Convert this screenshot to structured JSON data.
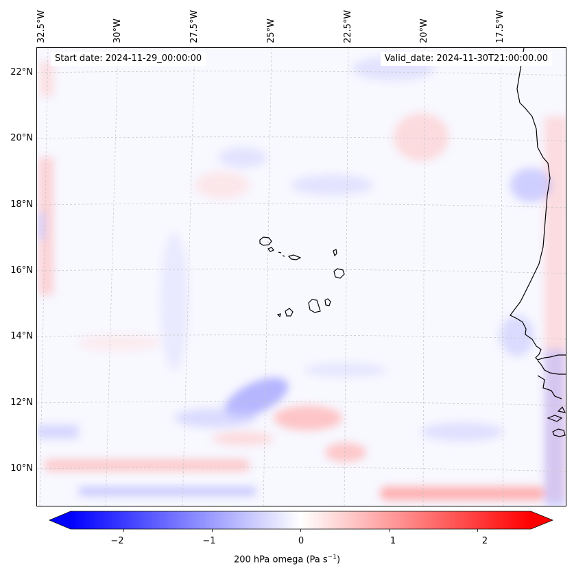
{
  "header": {
    "start_date": "Start date: 2024-11-29_00:00:00",
    "valid_date": "Valid_date: 2024-11-30T21:00:00.00"
  },
  "axes": {
    "longitude_labels": [
      "32.5°W",
      "30°W",
      "27.5°W",
      "25°W",
      "22.5°W",
      "20°W",
      "17.5°W"
    ],
    "latitude_labels": [
      "22°N",
      "20°N",
      "18°N",
      "16°N",
      "14°N",
      "12°N",
      "10°N"
    ]
  },
  "colorbar": {
    "ticks": [
      "−2",
      "−1",
      "0",
      "1",
      "2"
    ],
    "label": "200 hPa omega (Pa s",
    "label_exponent": "−1",
    "label_suffix": ")",
    "min": -2.6,
    "max": 2.6,
    "colors": {
      "negative": "#0000ff",
      "neutral": "#ffffff",
      "positive": "#ff0000"
    }
  },
  "map": {
    "field_colors": {
      "background": "#f8f8ff",
      "coast": "#000000",
      "grid": "#c8c8c8"
    }
  }
}
